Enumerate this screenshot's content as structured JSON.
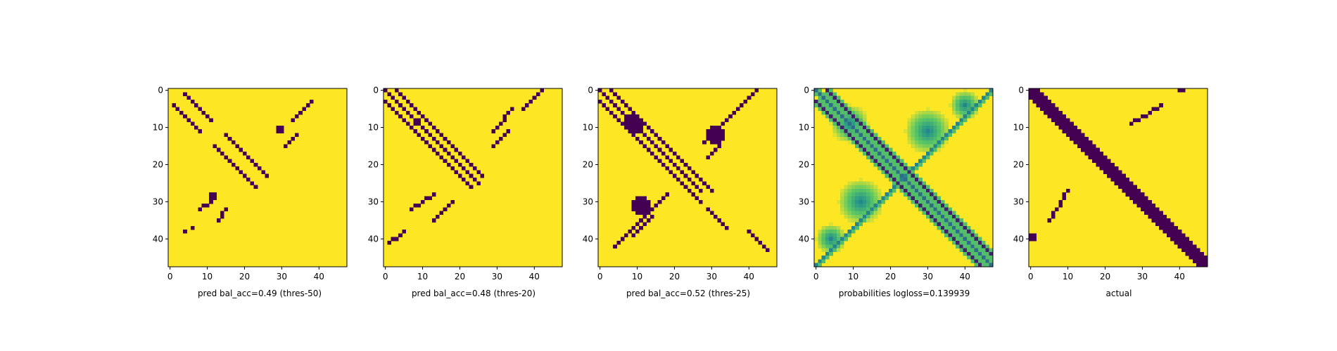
{
  "colors": {
    "low": "#440154",
    "high": "#fde725",
    "mid_low": "#3b528b",
    "mid": "#21918c",
    "mid_high": "#5ec962"
  },
  "chart_data": [
    {
      "type": "heatmap",
      "xlabel": "pred bal_acc=0.49 (thres-50)",
      "grid_size": 48,
      "xlim": [
        -0.5,
        47.5
      ],
      "ylim": [
        47.5,
        -0.5
      ],
      "xticks": [
        0,
        10,
        20,
        30,
        40
      ],
      "yticks": [
        0,
        10,
        20,
        30,
        40
      ],
      "values": "binary",
      "background": 1,
      "marks": [
        {
          "kind": "diag",
          "from": [
            4,
            1
          ],
          "to": [
            11,
            8
          ]
        },
        {
          "kind": "diag",
          "from": [
            1,
            4
          ],
          "to": [
            8,
            11
          ]
        },
        {
          "kind": "diag",
          "from": [
            15,
            12
          ],
          "to": [
            26,
            23
          ]
        },
        {
          "kind": "diag",
          "from": [
            12,
            15
          ],
          "to": [
            23,
            26
          ]
        },
        {
          "kind": "anti",
          "from": [
            38,
            3
          ],
          "to": [
            33,
            8
          ]
        },
        {
          "kind": "block",
          "rows": [
            10,
            11
          ],
          "cols": [
            29,
            30
          ]
        },
        {
          "kind": "anti",
          "from": [
            34,
            12
          ],
          "to": [
            31,
            15
          ]
        },
        {
          "kind": "block",
          "rows": [
            28,
            29
          ],
          "cols": [
            11,
            12
          ]
        },
        {
          "kind": "anti",
          "from": [
            11,
            30
          ],
          "to": [
            8,
            32
          ]
        },
        {
          "kind": "anti",
          "from": [
            15,
            32
          ],
          "to": [
            13,
            35
          ]
        },
        {
          "kind": "point",
          "pos": [
            4,
            38
          ]
        },
        {
          "kind": "point",
          "pos": [
            6,
            37
          ]
        }
      ]
    },
    {
      "type": "heatmap",
      "xlabel": "pred bal_acc=0.48 (thres-20)",
      "grid_size": 48,
      "xlim": [
        -0.5,
        47.5
      ],
      "ylim": [
        47.5,
        -0.5
      ],
      "xticks": [
        0,
        10,
        20,
        30,
        40
      ],
      "yticks": [
        0,
        10,
        20,
        30,
        40
      ],
      "values": "binary",
      "background": 1,
      "marks": [
        {
          "kind": "diag",
          "from": [
            0,
            0
          ],
          "to": [
            25,
            25
          ]
        },
        {
          "kind": "diag",
          "from": [
            3,
            0
          ],
          "to": [
            26,
            23
          ]
        },
        {
          "kind": "diag",
          "from": [
            0,
            3
          ],
          "to": [
            23,
            26
          ]
        },
        {
          "kind": "block",
          "rows": [
            8,
            9
          ],
          "cols": [
            8,
            9
          ]
        },
        {
          "kind": "anti",
          "from": [
            42,
            0
          ],
          "to": [
            37,
            5
          ]
        },
        {
          "kind": "anti",
          "from": [
            34,
            5
          ],
          "to": [
            29,
            11
          ]
        },
        {
          "kind": "anti",
          "from": [
            33,
            11
          ],
          "to": [
            29,
            15
          ]
        },
        {
          "kind": "anti",
          "from": [
            13,
            28
          ],
          "to": [
            7,
            32
          ]
        },
        {
          "kind": "anti",
          "from": [
            18,
            30
          ],
          "to": [
            13,
            35
          ]
        },
        {
          "kind": "anti",
          "from": [
            5,
            38
          ],
          "to": [
            1,
            41
          ]
        }
      ]
    },
    {
      "type": "heatmap",
      "xlabel": "pred bal_acc=0.52 (thres-25)",
      "grid_size": 48,
      "xlim": [
        -0.5,
        47.5
      ],
      "ylim": [
        47.5,
        -0.5
      ],
      "xticks": [
        0,
        10,
        20,
        30,
        40
      ],
      "yticks": [
        0,
        10,
        20,
        30,
        40
      ],
      "values": "binary",
      "background": 1,
      "marks": [
        {
          "kind": "diag",
          "from": [
            0,
            0
          ],
          "to": [
            27,
            27
          ]
        },
        {
          "kind": "diag",
          "from": [
            3,
            0
          ],
          "to": [
            30,
            27
          ]
        },
        {
          "kind": "diag",
          "from": [
            0,
            3
          ],
          "to": [
            27,
            30
          ]
        },
        {
          "kind": "blob",
          "center": [
            9,
            9
          ],
          "r": 2
        },
        {
          "kind": "anti",
          "from": [
            42,
            0
          ],
          "to": [
            30,
            12
          ]
        },
        {
          "kind": "anti",
          "from": [
            41,
            1
          ],
          "to": [
            28,
            14
          ]
        },
        {
          "kind": "blob",
          "center": [
            31,
            12
          ],
          "r": 2
        },
        {
          "kind": "anti",
          "from": [
            32,
            15
          ],
          "to": [
            29,
            18
          ]
        },
        {
          "kind": "anti",
          "from": [
            18,
            28
          ],
          "to": [
            6,
            40
          ]
        },
        {
          "kind": "anti",
          "from": [
            17,
            29
          ],
          "to": [
            4,
            42
          ]
        },
        {
          "kind": "blob",
          "center": [
            11,
            31
          ],
          "r": 2
        },
        {
          "kind": "anti",
          "from": [
            14,
            34
          ],
          "to": [
            9,
            39
          ]
        },
        {
          "kind": "diag",
          "from": [
            29,
            32
          ],
          "to": [
            34,
            37
          ]
        },
        {
          "kind": "diag",
          "from": [
            40,
            38
          ],
          "to": [
            45,
            43
          ]
        }
      ]
    },
    {
      "type": "heatmap",
      "xlabel": "probabilities logloss=0.139939",
      "grid_size": 48,
      "xlim": [
        -0.5,
        47.5
      ],
      "ylim": [
        47.5,
        -0.5
      ],
      "xticks": [
        0,
        10,
        20,
        30,
        40
      ],
      "yticks": [
        0,
        10,
        20,
        30,
        40
      ],
      "values": "continuous",
      "background": 1,
      "marks": [
        {
          "kind": "diag",
          "from": [
            0,
            0
          ],
          "to": [
            47,
            47
          ],
          "level": 0.35
        },
        {
          "kind": "diag",
          "from": [
            3,
            0
          ],
          "to": [
            47,
            44
          ],
          "level": 0.1
        },
        {
          "kind": "diag",
          "from": [
            0,
            3
          ],
          "to": [
            44,
            47
          ],
          "level": 0.1
        },
        {
          "kind": "anti",
          "from": [
            47,
            0
          ],
          "to": [
            0,
            47
          ],
          "level": 0.45
        },
        {
          "kind": "halo",
          "center": [
            9,
            9
          ],
          "r": 5
        },
        {
          "kind": "halo",
          "center": [
            30,
            11
          ],
          "r": 6
        },
        {
          "kind": "halo",
          "center": [
            12,
            30
          ],
          "r": 6
        },
        {
          "kind": "halo",
          "center": [
            40,
            4
          ],
          "r": 4
        },
        {
          "kind": "halo",
          "center": [
            4,
            40
          ],
          "r": 4
        }
      ]
    },
    {
      "type": "heatmap",
      "xlabel": "actual",
      "grid_size": 48,
      "xlim": [
        -0.5,
        47.5
      ],
      "ylim": [
        47.5,
        -0.5
      ],
      "xticks": [
        0,
        10,
        20,
        30,
        40
      ],
      "yticks": [
        0,
        10,
        20,
        30,
        40
      ],
      "values": "binary",
      "background": 1,
      "marks": [
        {
          "kind": "band",
          "from": [
            0,
            0
          ],
          "to": [
            47,
            47
          ],
          "width": 2
        },
        {
          "kind": "anti",
          "from": [
            35,
            4
          ],
          "to": [
            27,
            9
          ]
        },
        {
          "kind": "anti",
          "from": [
            10,
            27
          ],
          "to": [
            5,
            35
          ]
        },
        {
          "kind": "block",
          "rows": [
            0,
            0
          ],
          "cols": [
            40,
            41
          ]
        },
        {
          "kind": "block",
          "rows": [
            39,
            40
          ],
          "cols": [
            0,
            1
          ]
        }
      ]
    }
  ]
}
